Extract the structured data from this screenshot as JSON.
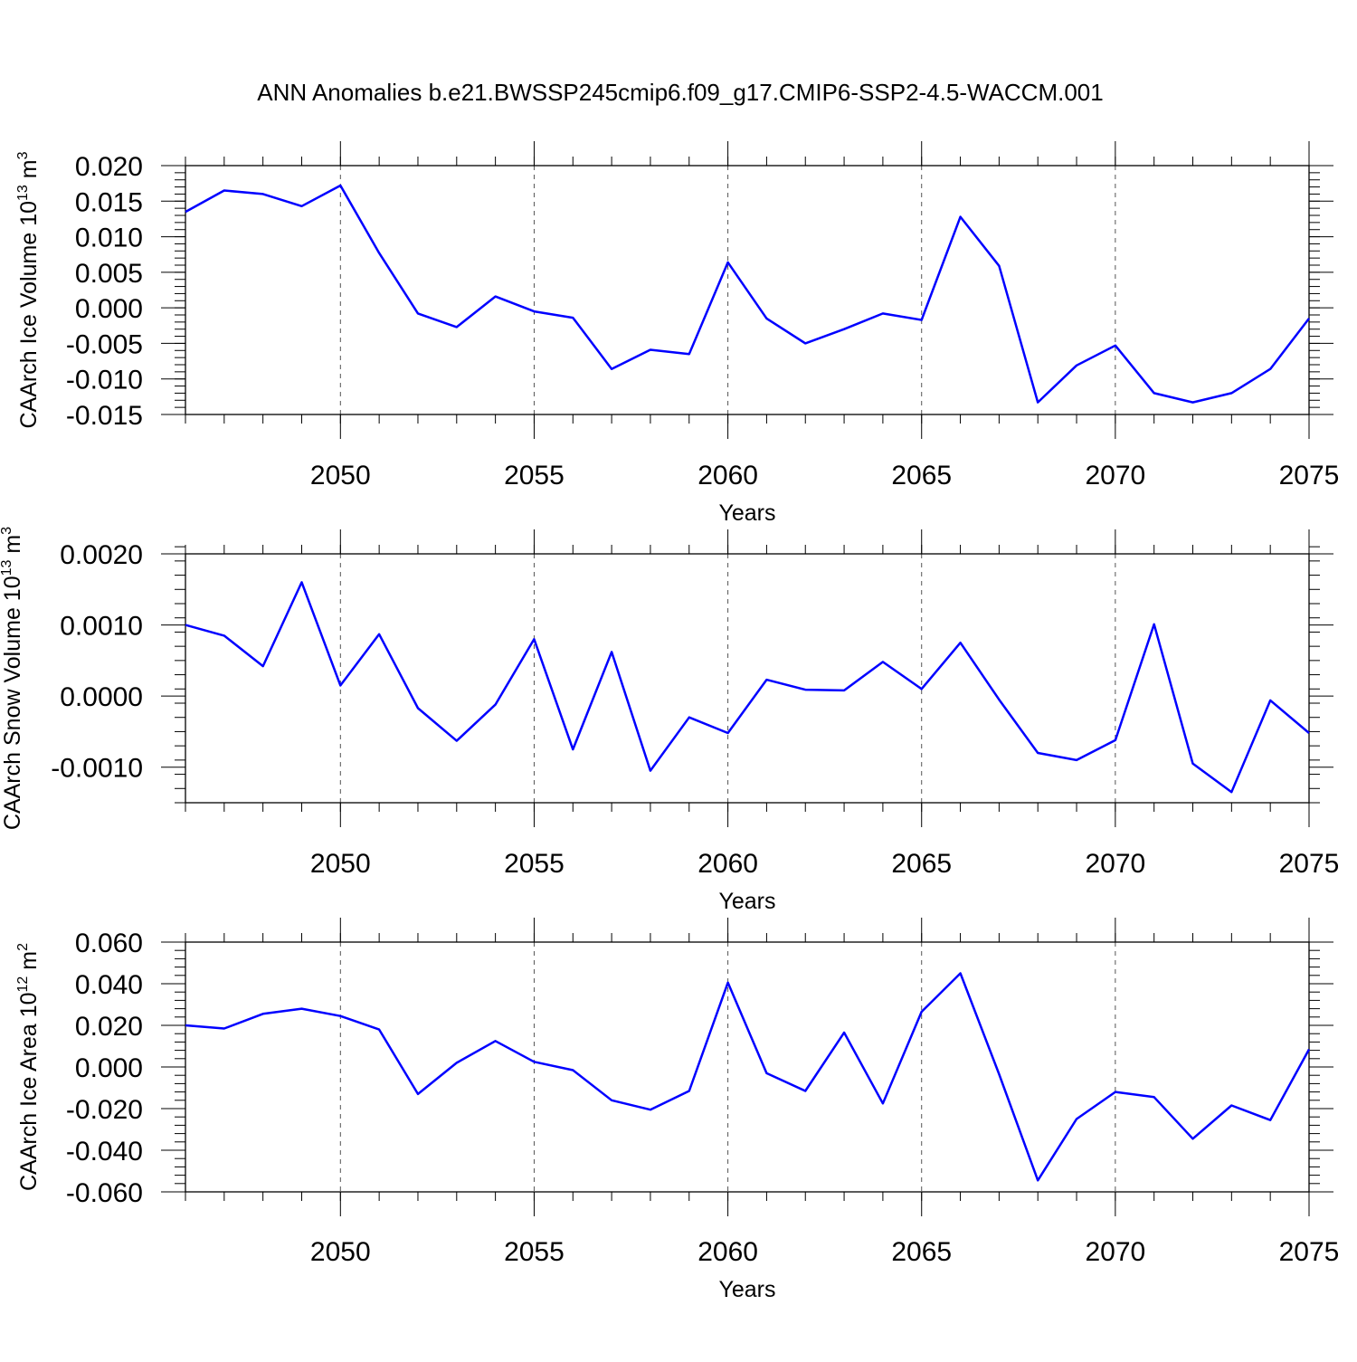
{
  "title": "ANN Anomalies b.e21.BWSSP245cmip6.f09_g17.CMIP6-SSP2-4.5-WACCM.001",
  "line_color": "#0000ff",
  "chart_data": [
    {
      "type": "line",
      "ylabel": "CAArch Ice Volume 10",
      "ylabel_exp": "13",
      "ylabel_unit": " m",
      "ylabel_unit_exp": "3",
      "xlabel": "Years",
      "xlim": [
        2046,
        2075
      ],
      "ylim": [
        -0.015,
        0.02
      ],
      "x_ticks": [
        "2050",
        "2055",
        "2060",
        "2065",
        "2070",
        "2075"
      ],
      "y_ticks": [
        "0.020",
        "0.015",
        "0.010",
        "0.005",
        "0.000",
        "-0.005",
        "-0.010",
        "-0.015"
      ],
      "x": [
        2046,
        2047,
        2048,
        2049,
        2050,
        2051,
        2052,
        2053,
        2054,
        2055,
        2056,
        2057,
        2058,
        2059,
        2060,
        2061,
        2062,
        2063,
        2064,
        2065,
        2066,
        2067,
        2068,
        2069,
        2070,
        2071,
        2072,
        2073,
        2074,
        2075
      ],
      "values": [
        0.0135,
        0.0165,
        0.016,
        0.0143,
        0.0172,
        0.0077,
        -0.0008,
        -0.0027,
        0.0016,
        -0.0005,
        -0.0014,
        -0.0086,
        -0.0059,
        -0.0065,
        0.0064,
        -0.0015,
        -0.005,
        -0.003,
        -0.0008,
        -0.0017,
        0.0128,
        0.0059,
        -0.0133,
        -0.0081,
        -0.0053,
        -0.012,
        -0.0133,
        -0.012,
        -0.0086,
        -0.0015
      ]
    },
    {
      "type": "line",
      "ylabel": "CAArch Snow Volume 10",
      "ylabel_exp": "13",
      "ylabel_unit": " m",
      "ylabel_unit_exp": "3",
      "xlabel": "Years",
      "xlim": [
        2046,
        2075
      ],
      "ylim": [
        -0.0015,
        0.002
      ],
      "x_ticks": [
        "2050",
        "2055",
        "2060",
        "2065",
        "2070",
        "2075"
      ],
      "y_ticks": [
        "0.0020",
        "0.0010",
        "0.0000",
        "-0.0010"
      ],
      "x": [
        2046,
        2047,
        2048,
        2049,
        2050,
        2051,
        2052,
        2053,
        2054,
        2055,
        2056,
        2057,
        2058,
        2059,
        2060,
        2061,
        2062,
        2063,
        2064,
        2065,
        2066,
        2067,
        2068,
        2069,
        2070,
        2071,
        2072,
        2073,
        2074,
        2075
      ],
      "values": [
        0.001,
        0.00085,
        0.00042,
        0.0016,
        0.00015,
        0.00087,
        -0.00017,
        -0.00063,
        -0.00012,
        0.0008,
        -0.00075,
        0.00062,
        -0.00105,
        -0.0003,
        -0.00052,
        0.00023,
        9e-05,
        8e-05,
        0.00048,
        0.0001,
        0.00075,
        -5e-05,
        -0.0008,
        -0.0009,
        -0.00062,
        0.00101,
        -0.00095,
        -0.00135,
        -6e-05,
        -0.00052
      ]
    },
    {
      "type": "line",
      "ylabel": "CAArch Ice Area 10",
      "ylabel_exp": "12",
      "ylabel_unit": " m",
      "ylabel_unit_exp": "2",
      "xlabel": "Years",
      "xlim": [
        2046,
        2075
      ],
      "ylim": [
        -0.06,
        0.06
      ],
      "x_ticks": [
        "2050",
        "2055",
        "2060",
        "2065",
        "2070",
        "2075"
      ],
      "y_ticks": [
        "0.060",
        "0.040",
        "0.020",
        "0.000",
        "-0.020",
        "-0.040",
        "-0.060"
      ],
      "x": [
        2046,
        2047,
        2048,
        2049,
        2050,
        2051,
        2052,
        2053,
        2054,
        2055,
        2056,
        2057,
        2058,
        2059,
        2060,
        2061,
        2062,
        2063,
        2064,
        2065,
        2066,
        2067,
        2068,
        2069,
        2070,
        2071,
        2072,
        2073,
        2074,
        2075
      ],
      "values": [
        0.02,
        0.0185,
        0.0255,
        0.028,
        0.0245,
        0.018,
        -0.013,
        0.002,
        0.0125,
        0.0025,
        -0.0015,
        -0.016,
        -0.0205,
        -0.0115,
        0.0405,
        -0.003,
        -0.0115,
        0.0165,
        -0.0175,
        0.0265,
        0.045,
        -0.0035,
        -0.0545,
        -0.025,
        -0.012,
        -0.0145,
        -0.0345,
        -0.0185,
        -0.0255,
        0.0085
      ]
    }
  ]
}
